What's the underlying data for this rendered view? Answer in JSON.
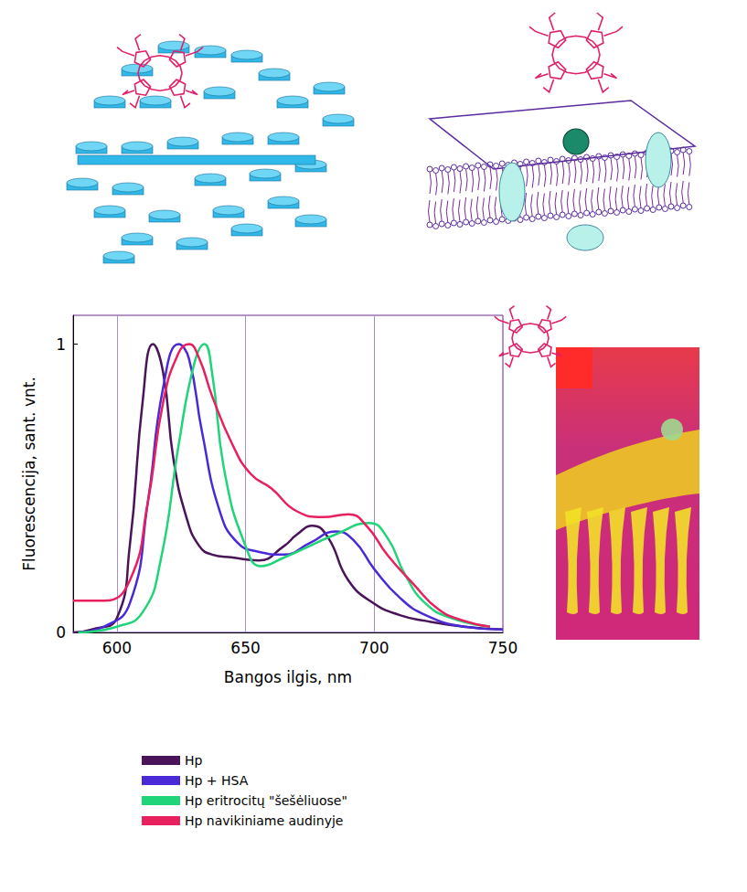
{
  "chart_data": {
    "type": "line",
    "x_label": "Bangos ilgis, nm",
    "y_label": "Fluorescencija, sant. vnt.",
    "xlim": [
      583,
      750
    ],
    "xticks": [
      600,
      650,
      700,
      750
    ],
    "ylim": [
      0,
      1.1
    ],
    "yticks": [
      0,
      1
    ],
    "grid": true,
    "legend": "bottom",
    "series": [
      {
        "name": "Hp",
        "color": "#4a1458",
        "x": [
          583,
          590,
          600,
          605,
          610,
          614,
          618,
          622,
          627,
          632,
          637,
          645,
          655,
          665,
          670,
          676,
          682,
          690,
          700,
          710,
          720,
          735,
          750
        ],
        "values": [
          0.0,
          0.01,
          0.05,
          0.3,
          0.8,
          1.0,
          0.9,
          0.6,
          0.4,
          0.3,
          0.27,
          0.26,
          0.25,
          0.3,
          0.34,
          0.37,
          0.33,
          0.18,
          0.1,
          0.06,
          0.04,
          0.02,
          0.01
        ]
      },
      {
        "name": "Hp + HSA",
        "color": "#4a2ad6",
        "x": [
          585,
          595,
          605,
          612,
          618,
          624,
          628,
          633,
          640,
          647,
          655,
          665,
          675,
          685,
          692,
          700,
          710,
          720,
          735,
          750
        ],
        "values": [
          0.0,
          0.02,
          0.1,
          0.45,
          0.85,
          1.0,
          0.95,
          0.7,
          0.42,
          0.31,
          0.28,
          0.27,
          0.31,
          0.35,
          0.32,
          0.22,
          0.12,
          0.06,
          0.02,
          0.01
        ]
      },
      {
        "name": "Hp eritrocitų \"šešėliuose\"",
        "color": "#20d47a",
        "x": [
          585,
          600,
          610,
          617,
          624,
          630,
          634,
          637,
          642,
          650,
          656,
          665,
          675,
          685,
          698,
          705,
          712,
          720,
          730,
          745
        ],
        "values": [
          0.0,
          0.02,
          0.07,
          0.25,
          0.65,
          0.93,
          1.0,
          0.9,
          0.55,
          0.3,
          0.23,
          0.26,
          0.3,
          0.34,
          0.38,
          0.33,
          0.2,
          0.1,
          0.05,
          0.02
        ]
      },
      {
        "name": "Hp navikiniame audinyje",
        "color": "#e8205e",
        "x": [
          583,
          595,
          605,
          612,
          618,
          624,
          628,
          632,
          637,
          645,
          652,
          660,
          670,
          680,
          690,
          697,
          705,
          715,
          725,
          735,
          745
        ],
        "values": [
          0.11,
          0.11,
          0.18,
          0.45,
          0.8,
          0.97,
          1.0,
          0.95,
          0.82,
          0.65,
          0.55,
          0.5,
          0.42,
          0.4,
          0.41,
          0.37,
          0.27,
          0.17,
          0.08,
          0.04,
          0.02
        ]
      }
    ]
  }
}
